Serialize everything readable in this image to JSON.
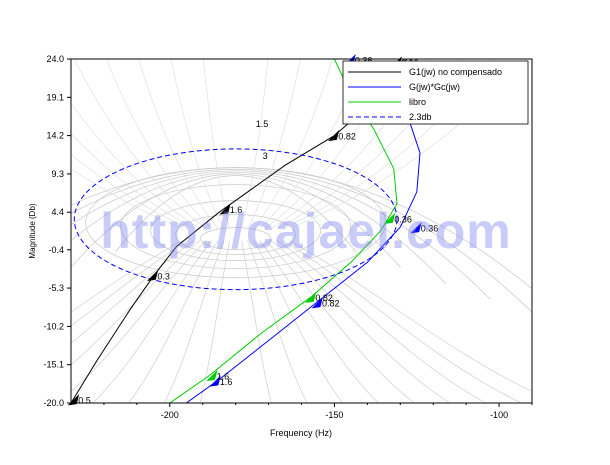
{
  "chart_data": {
    "type": "line",
    "title": "",
    "xlabel": "Frequency (Hz)",
    "ylabel": "Magnitude (Db)",
    "xlim": [
      -230,
      -90
    ],
    "ylim": [
      -20.0,
      24.0
    ],
    "xticks": [
      -200,
      -150,
      -100
    ],
    "yticks": [
      -20.0,
      -15.1,
      -10.2,
      -5.3,
      -0.4,
      4.4,
      9.3,
      14.2,
      19.1,
      24.0
    ],
    "ytick_labels": [
      "-20.0",
      "-15.1",
      "-10.2",
      "-5.3",
      "-0.4",
      "4.4",
      "9.3",
      "14.2",
      "19.1",
      "24.0"
    ],
    "grid": "Nichols chart (M and N contours)",
    "legend_position": "top-right",
    "legend": [
      {
        "label": "G1(jw) no compensado",
        "color": "#000000",
        "style": "solid"
      },
      {
        "label": "G(jw)*Gc(jw)",
        "color": "#0000ff",
        "style": "solid"
      },
      {
        "label": "libro",
        "color": "#00cc00",
        "style": "solid"
      },
      {
        "label": "2.3db",
        "color": "#0000ff",
        "style": "dashed"
      }
    ],
    "contour_labels": [
      {
        "text": "1.5",
        "x": -172,
        "y": 15.3
      },
      {
        "text": "3",
        "x": -171,
        "y": 11.2
      }
    ],
    "series": [
      {
        "name": "G1(jw) no compensado",
        "color": "#000000",
        "points": [
          {
            "x": -230,
            "y": -20.0
          },
          {
            "x": -222,
            "y": -14.5
          },
          {
            "x": -212,
            "y": -8.0
          },
          {
            "x": -205,
            "y": -3.8
          },
          {
            "x": -198,
            "y": 0.0
          },
          {
            "x": -185,
            "y": 4.4
          },
          {
            "x": -175,
            "y": 7.4
          },
          {
            "x": -165,
            "y": 10.4
          },
          {
            "x": -150,
            "y": 14.2
          },
          {
            "x": -138,
            "y": 18.6
          },
          {
            "x": -128,
            "y": 24.0
          }
        ],
        "markers": [
          {
            "x": -229,
            "y": -19.7,
            "label": "0.5"
          },
          {
            "x": -205,
            "y": -3.8,
            "label": "0.3"
          },
          {
            "x": -183,
            "y": 4.7,
            "label": "1.6"
          },
          {
            "x": -150,
            "y": 14.1,
            "label": "0.82"
          },
          {
            "x": -131,
            "y": 23.5,
            "label": "0.36"
          }
        ]
      },
      {
        "name": "G(jw)*Gc(jw)",
        "color": "#0000ff",
        "points": [
          {
            "x": -195,
            "y": -20.0
          },
          {
            "x": -185,
            "y": -17.0
          },
          {
            "x": -170,
            "y": -12.0
          },
          {
            "x": -155,
            "y": -7.0
          },
          {
            "x": -140,
            "y": -2.0
          },
          {
            "x": -130,
            "y": 2.5
          },
          {
            "x": -125,
            "y": 7.0
          },
          {
            "x": -124,
            "y": 12.0
          },
          {
            "x": -128,
            "y": 17.0
          },
          {
            "x": -136,
            "y": 21.0
          },
          {
            "x": -145,
            "y": 24.0
          }
        ],
        "markers": [
          {
            "x": -186,
            "y": -17.3,
            "label": "1.6"
          },
          {
            "x": -155,
            "y": -7.3,
            "label": "0.82"
          },
          {
            "x": -125,
            "y": 2.3,
            "label": "0.36"
          },
          {
            "x": -145,
            "y": 23.8,
            "label": "0.36"
          }
        ]
      },
      {
        "name": "libro",
        "color": "#00cc00",
        "points": [
          {
            "x": -200,
            "y": -20.0
          },
          {
            "x": -188,
            "y": -16.5
          },
          {
            "x": -172,
            "y": -11.0
          },
          {
            "x": -157,
            "y": -6.4
          },
          {
            "x": -145,
            "y": -2.0
          },
          {
            "x": -136,
            "y": 2.0
          },
          {
            "x": -131,
            "y": 5.5
          },
          {
            "x": -132,
            "y": 10.0
          },
          {
            "x": -138,
            "y": 15.0
          },
          {
            "x": -145,
            "y": 19.5
          },
          {
            "x": -150,
            "y": 24.0
          }
        ],
        "markers": [
          {
            "x": -187,
            "y": -16.6,
            "label": "1.6"
          },
          {
            "x": -157,
            "y": -6.6,
            "label": "0.82"
          },
          {
            "x": -133,
            "y": 3.5,
            "label": "0.36"
          }
        ]
      },
      {
        "name": "2.3db",
        "color": "#0000ff",
        "style": "dashed",
        "shape": "ellipse",
        "center": {
          "x": -180,
          "y": 3.5
        },
        "radius_x": 49,
        "radius_y": 9.0
      }
    ]
  },
  "watermark": "http://cajael.com"
}
